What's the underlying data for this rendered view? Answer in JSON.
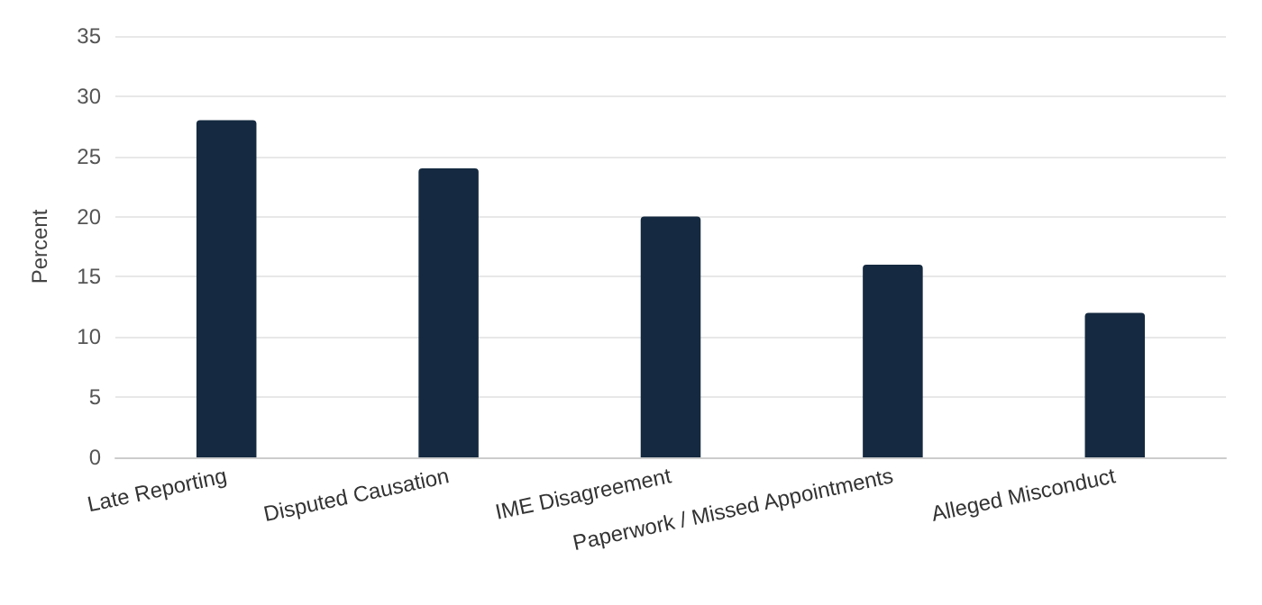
{
  "chart_data": {
    "type": "bar",
    "ylabel": "Percent",
    "categories": [
      "Late Reporting",
      "Disputed Causation",
      "IME Disagreement",
      "Paperwork / Missed Appointments",
      "Alleged Misconduct"
    ],
    "values": [
      28,
      24,
      20,
      16,
      12
    ],
    "color": "#152a40",
    "ylim": [
      0,
      35
    ],
    "yticks": [
      0,
      5,
      10,
      15,
      20,
      25,
      30,
      35
    ],
    "grid": "y"
  }
}
